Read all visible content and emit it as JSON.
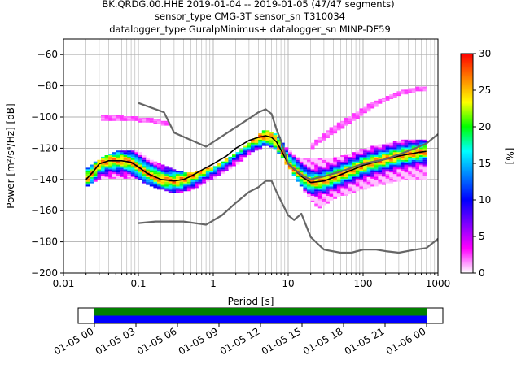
{
  "title_lines": [
    "BK.QRDG.00.HHE   2019-01-04 -- 2019-01-05  (47/47 segments)",
    "sensor_type CMG-3T sensor_sn T310034",
    "datalogger_type GuralpMinimus+ datalogger_sn MINP-DF59"
  ],
  "chart_data": [
    {
      "type": "heatmap",
      "title": "BK.QRDG.00.HHE   2019-01-04 -- 2019-01-05  (47/47 segments)",
      "xlabel": "Period [s]",
      "ylabel": "Power [m²/s⁴/Hz] [dB]",
      "xscale": "log",
      "xlim": [
        0.01,
        1000
      ],
      "ylim": [
        -200,
        -50
      ],
      "xticks": [
        "0.01",
        "0.1",
        "1",
        "10",
        "100",
        "1000"
      ],
      "yticks": [
        "-200",
        "-180",
        "-160",
        "-140",
        "-120",
        "-100",
        "-80",
        "-60"
      ],
      "grid": true,
      "colorbar": {
        "label": "[%]",
        "range": [
          0,
          30
        ],
        "ticks": [
          "0",
          "5",
          "10",
          "15",
          "20",
          "25",
          "30"
        ],
        "colormap": [
          "#ffffff",
          "#ff00ff",
          "#8000ff",
          "#0000ff",
          "#0080ff",
          "#00ffff",
          "#00ff00",
          "#ffff00",
          "#ff8000",
          "#ff0000"
        ]
      },
      "series": [
        {
          "role": "mode",
          "color": "#000000",
          "x": [
            0.02,
            0.025,
            0.03,
            0.04,
            0.06,
            0.08,
            0.1,
            0.13,
            0.2,
            0.3,
            0.4,
            0.5,
            0.7,
            1,
            1.5,
            2,
            3,
            4,
            5,
            6,
            7,
            8,
            10,
            13,
            15,
            20,
            30,
            50,
            100,
            200,
            300,
            500,
            700
          ],
          "y": [
            -140,
            -135,
            -130,
            -128,
            -128,
            -129,
            -132,
            -136,
            -140,
            -141,
            -140,
            -138,
            -134,
            -130,
            -125,
            -120,
            -115,
            -113,
            -112,
            -113,
            -116,
            -121,
            -130,
            -135,
            -138,
            -142,
            -141,
            -137,
            -131,
            -127,
            -125,
            -123,
            -122
          ]
        },
        {
          "role": "new high noise model",
          "color": "#666666",
          "x": [
            0.1,
            0.22,
            0.3,
            0.8,
            3,
            4,
            5,
            6,
            7,
            8,
            10,
            14,
            16,
            20,
            30,
            50,
            100,
            200,
            300,
            500,
            700,
            1000
          ],
          "y": [
            -91,
            -97,
            -110,
            -119,
            -101,
            -97,
            -95,
            -98,
            -108,
            -115,
            -130,
            -136,
            -138,
            -140,
            -138,
            -135,
            -130,
            -127,
            -124,
            -120,
            -117,
            -111
          ]
        },
        {
          "role": "new low noise model",
          "color": "#666666",
          "x": [
            0.1,
            0.17,
            0.4,
            0.8,
            1.3,
            2,
            3,
            4,
            5,
            6,
            7,
            10,
            12,
            15,
            20,
            30,
            50,
            70,
            100,
            150,
            200,
            300,
            500,
            700,
            1000
          ],
          "y": [
            -168,
            -167,
            -167,
            -169,
            -163,
            -155,
            -148,
            -145,
            -141,
            -141,
            -148,
            -163,
            -166,
            -162,
            -177,
            -185,
            -187,
            -187,
            -185,
            -185,
            -186,
            -187,
            -185,
            -184,
            -178
          ]
        }
      ],
      "bands": [
        {
          "x": [
            0.02,
            0.03,
            0.05,
            0.1,
            0.15,
            0.3,
            0.5,
            1,
            2,
            3,
            5,
            7,
            10,
            15,
            25,
            40,
            80,
            150,
            300,
            700
          ],
          "y_low": [
            -145,
            -140,
            -139,
            -140,
            -145,
            -149,
            -147,
            -140,
            -131,
            -124,
            -118,
            -121,
            -132,
            -145,
            -159,
            -153,
            -148,
            -144,
            -141,
            -140
          ],
          "y_high": [
            -133,
            -127,
            -122,
            -122,
            -128,
            -134,
            -136,
            -132,
            -123,
            -116,
            -108,
            -111,
            -121,
            -127,
            -127,
            -126,
            -122,
            -118,
            -115,
            -114
          ]
        },
        {
          "x": [
            0.03,
            0.06,
            0.1,
            0.15,
            0.25
          ],
          "y_low": [
            -102,
            -102,
            -103,
            -104,
            -106
          ],
          "y_high": [
            -99,
            -99,
            -100,
            -101,
            -103
          ]
        },
        {
          "x": [
            20,
            40,
            80,
            150,
            300,
            700
          ],
          "y_low": [
            -121,
            -111,
            -102,
            -93,
            -86,
            -83
          ],
          "y_high": [
            -117,
            -106,
            -97,
            -89,
            -83,
            -80
          ]
        }
      ]
    },
    {
      "type": "timeline",
      "xtick_labels": [
        "01-05 00",
        "01-05 03",
        "01-05 06",
        "01-05 09",
        "01-05 12",
        "01-05 15",
        "01-05 18",
        "01-05 21",
        "01-06 00"
      ],
      "bars": [
        {
          "name": "data",
          "color": "#008000",
          "coverage": [
            0,
            1
          ]
        },
        {
          "name": "psd",
          "color": "#0000ff",
          "coverage": [
            0,
            1
          ]
        }
      ]
    }
  ]
}
